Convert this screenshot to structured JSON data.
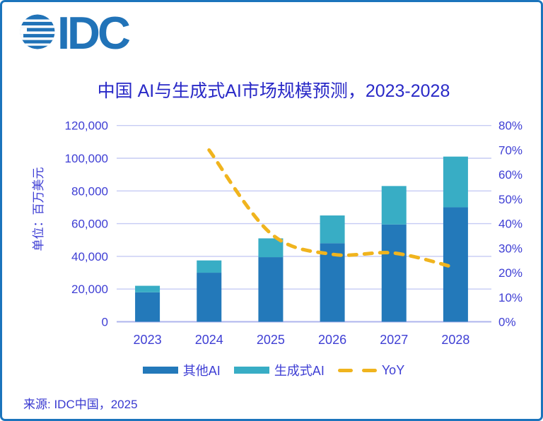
{
  "app": {
    "frame_border_color": "#1B74BC",
    "background_color": "#FFFFFF"
  },
  "logo": {
    "text": "IDC",
    "color": "#2173B8",
    "globe_icon": "striped-globe"
  },
  "title": {
    "text": "中国 AI与生成式AI市场规模预测，2023-2028",
    "color": "#2929C7"
  },
  "source": {
    "text": "来源: IDC中国，2025"
  },
  "chart_data": {
    "type": "bar",
    "subtype": "stacked-column-with-line",
    "categories": [
      "2023",
      "2024",
      "2025",
      "2026",
      "2027",
      "2028"
    ],
    "bar_series": [
      {
        "name": "其他AI",
        "color": "#2379BA",
        "values": [
          18000,
          30000,
          39500,
          48000,
          59500,
          70000
        ]
      },
      {
        "name": "生成式AI",
        "color": "#38ADC5",
        "values": [
          4000,
          7500,
          11500,
          17000,
          23500,
          31000
        ]
      }
    ],
    "line_series": {
      "name": "YoY",
      "color": "#F0B41E",
      "style": "dashed",
      "smoothed": true,
      "axis": "right",
      "unit": "%",
      "values": [
        null,
        70,
        36,
        27.5,
        28,
        22
      ]
    },
    "left_axis": {
      "label": "单位：百万美元",
      "min": 0,
      "max": 120000,
      "step": 20000,
      "tick_labels": [
        "0",
        "20,000",
        "40,000",
        "60,000",
        "80,000",
        "100,000",
        "120,000"
      ]
    },
    "right_axis": {
      "min": 0,
      "max": 80,
      "step": 10,
      "tick_labels": [
        "0%",
        "10%",
        "20%",
        "30%",
        "40%",
        "50%",
        "60%",
        "70%",
        "80%"
      ]
    },
    "stacked": true,
    "grid": true,
    "grid_color": "#C6CBF4",
    "baseline_color": "#AEB4ED",
    "axis_text_color": "#3E3ED4",
    "legend_position": "bottom"
  },
  "legend": {
    "items": [
      {
        "label": "其他AI",
        "swatch": "bar",
        "color": "#2379BA"
      },
      {
        "label": "生成式AI",
        "swatch": "bar",
        "color": "#38ADC5"
      },
      {
        "label": "YoY",
        "swatch": "dash",
        "color": "#F0B41E"
      }
    ]
  }
}
